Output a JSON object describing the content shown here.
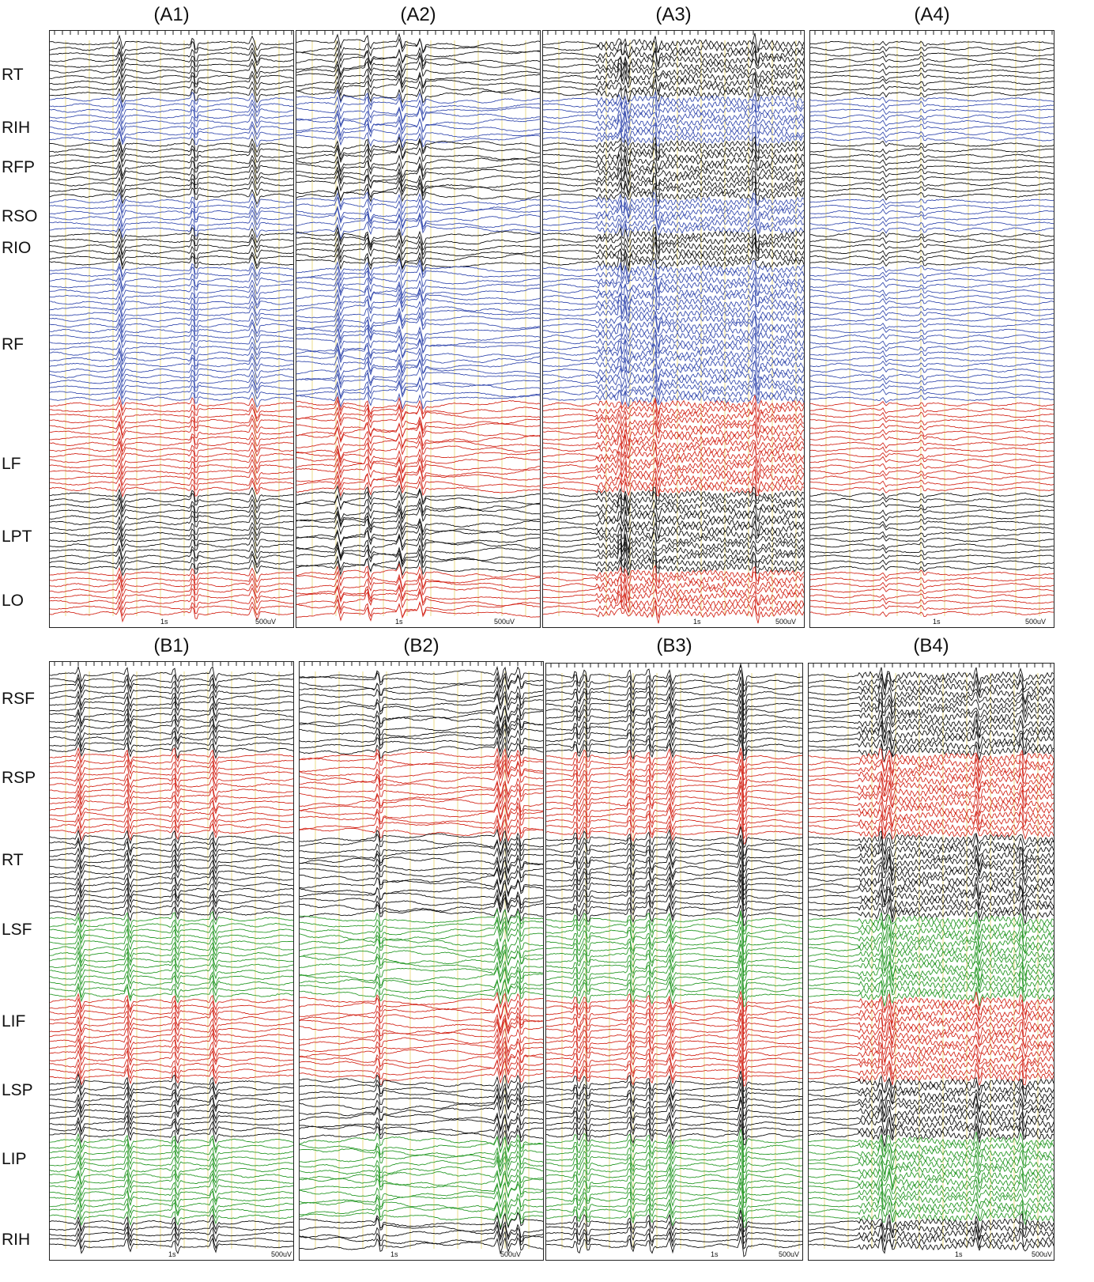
{
  "figure": {
    "rows": [
      {
        "id": "A",
        "panels": [
          {
            "title": "(A1)",
            "time_label": "1s",
            "amp_label": "500uV",
            "pattern": "spikes"
          },
          {
            "title": "(A2)",
            "time_label": "1s",
            "amp_label": "500uV",
            "pattern": "slow"
          },
          {
            "title": "(A3)",
            "time_label": "1s",
            "amp_label": "500uV",
            "pattern": "fast"
          },
          {
            "title": "(A4)",
            "time_label": "1s",
            "amp_label": "500uV",
            "pattern": "quiet"
          }
        ],
        "channel_labels": [
          "RT",
          "RIH",
          "RFP",
          "RSO",
          "RIO",
          "RF",
          "LF",
          "LPT",
          "LO"
        ],
        "bands": [
          {
            "color": "#111111",
            "count": 10
          },
          {
            "color": "#3a4fb0",
            "count": 8
          },
          {
            "color": "#111111",
            "count": 10
          },
          {
            "color": "#3a4fb0",
            "count": 6
          },
          {
            "color": "#111111",
            "count": 6
          },
          {
            "color": "#3a4fb0",
            "count": 24
          },
          {
            "color": "#d42a1e",
            "count": 16
          },
          {
            "color": "#111111",
            "count": 14
          },
          {
            "color": "#d42a1e",
            "count": 8
          }
        ]
      },
      {
        "id": "B",
        "panels": [
          {
            "title": "(B1)",
            "time_label": "1s",
            "amp_label": "500uV",
            "pattern": "spikes"
          },
          {
            "title": "(B2)",
            "time_label": "1s",
            "amp_label": "500uV",
            "pattern": "slow"
          },
          {
            "title": "(B3)",
            "time_label": "1s",
            "amp_label": "500uV",
            "pattern": "burst"
          },
          {
            "title": "(B4)",
            "time_label": "1s",
            "amp_label": "500uV",
            "pattern": "fast"
          }
        ],
        "channel_labels": [
          "RSF",
          "RSP",
          "RT",
          "LSF",
          "LIF",
          "LSP",
          "LIP",
          "RIH"
        ],
        "bands": [
          {
            "color": "#111111",
            "count": 14
          },
          {
            "color": "#d42a1e",
            "count": 14
          },
          {
            "color": "#111111",
            "count": 14
          },
          {
            "color": "#2a9a2a",
            "count": 14
          },
          {
            "color": "#d42a1e",
            "count": 14
          },
          {
            "color": "#111111",
            "count": 10
          },
          {
            "color": "#2a9a2a",
            "count": 14
          },
          {
            "color": "#111111",
            "count": 5
          }
        ]
      }
    ],
    "gridline_color": "#e6d36a"
  }
}
